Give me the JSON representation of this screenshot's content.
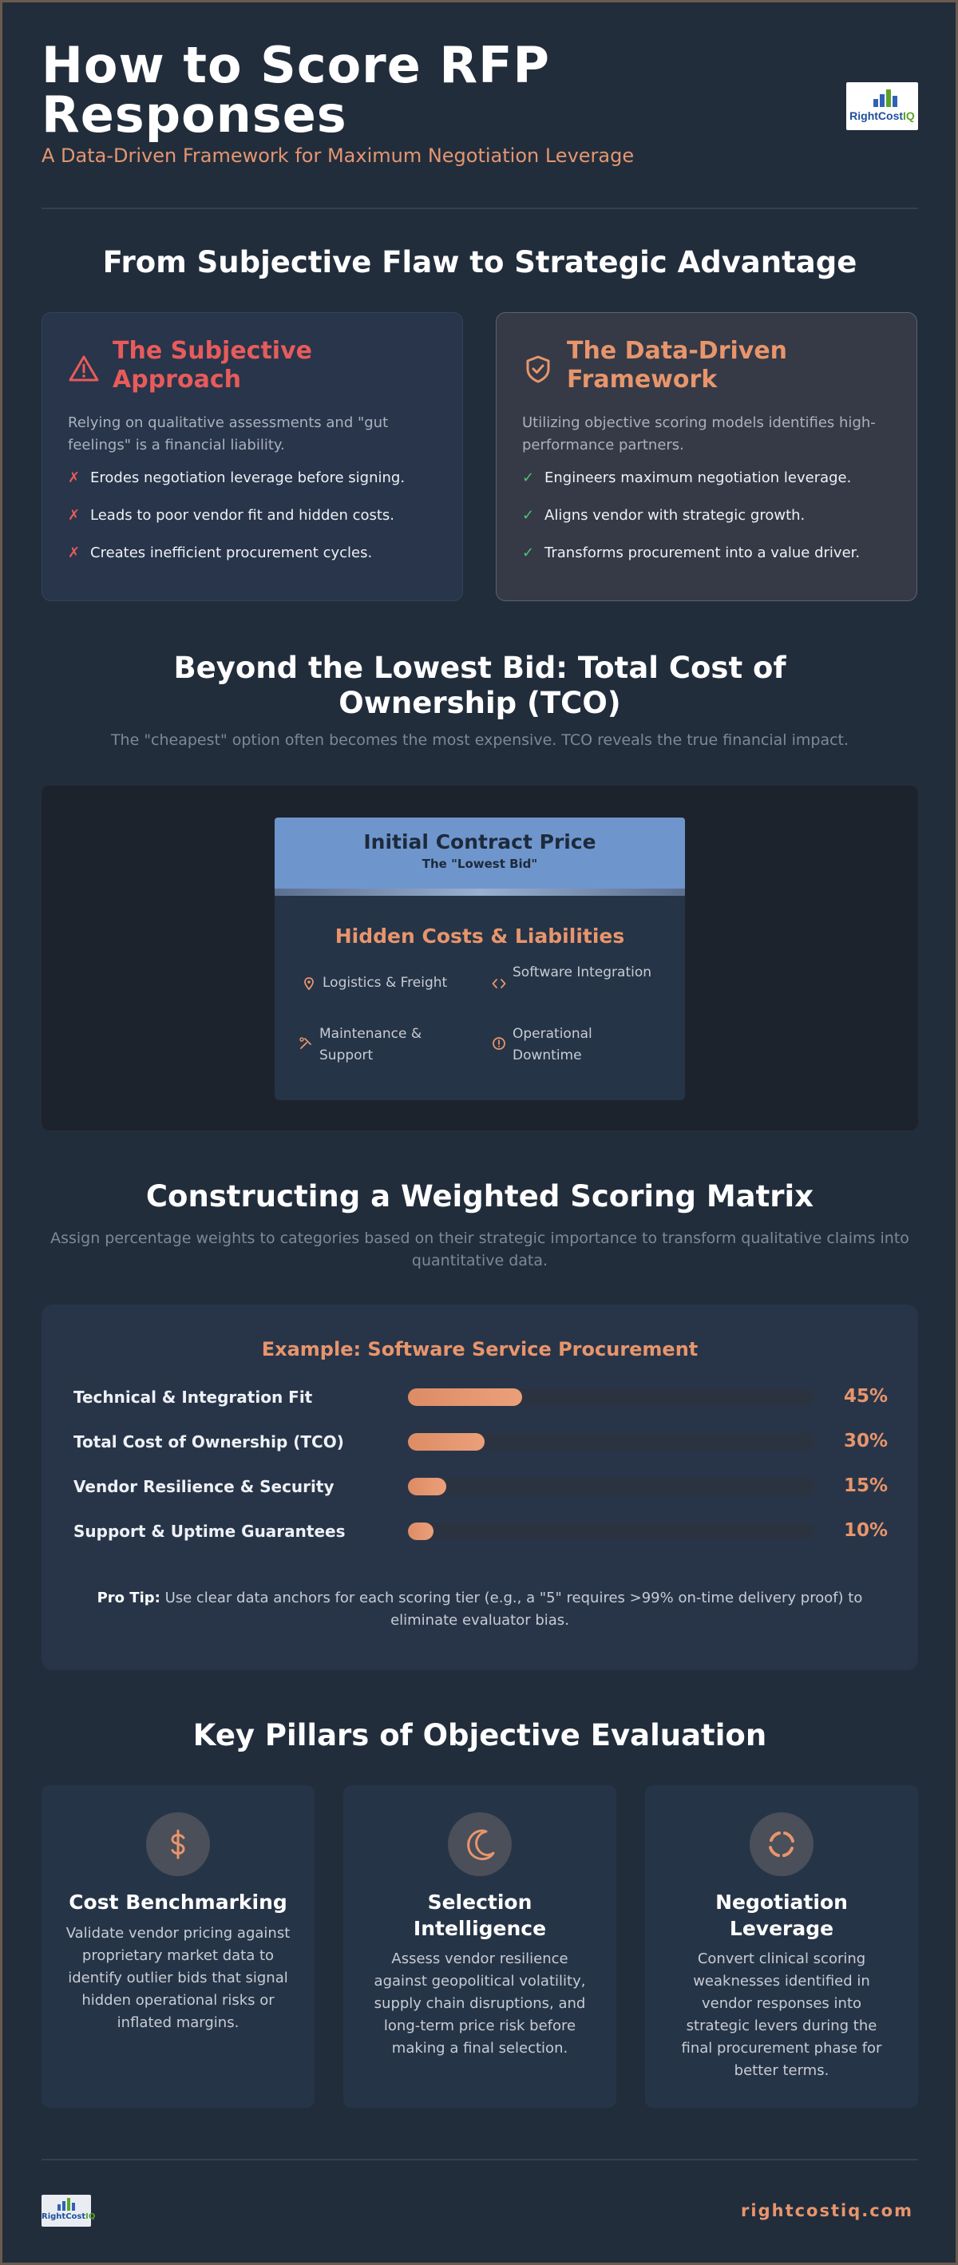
{
  "header": {
    "title": "How to Score RFP Responses",
    "subtitle": "A Data-Driven Framework for Maximum Negotiation Leverage",
    "logo_text_a": "Right",
    "logo_text_b": "Cost",
    "logo_text_c": "IQ"
  },
  "comparison": {
    "title": "From Subjective Flaw to Strategic Advantage",
    "subjective": {
      "title": "The Subjective Approach",
      "icon": "warning-triangle-icon",
      "description": "Relying on qualitative assessments and \"gut feelings\" is a financial liability.",
      "points": [
        "Erodes negotiation leverage before signing.",
        "Leads to poor vendor fit and hidden costs.",
        "Creates inefficient procurement cycles."
      ]
    },
    "data_driven": {
      "title": "The Data-Driven Framework",
      "icon": "shield-check-icon",
      "description": "Utilizing objective scoring models identifies high-performance partners.",
      "points": [
        "Engineers maximum negotiation leverage.",
        "Aligns vendor with strategic growth.",
        "Transforms procurement into a value driver."
      ]
    }
  },
  "tco": {
    "title": "Beyond the Lowest Bid: Total Cost of Ownership (TCO)",
    "subtitle": "The \"cheapest\" option often becomes the most expensive. TCO reveals the true financial impact.",
    "top_title": "Initial Contract Price",
    "top_sub": "The \"Lowest Bid\"",
    "hidden_title": "Hidden Costs & Liabilities",
    "items": [
      {
        "label": "Logistics & Freight",
        "icon": "location-pin-icon"
      },
      {
        "label": "Software Integration",
        "icon": "code-icon"
      },
      {
        "label": "Maintenance & Support",
        "icon": "tools-icon"
      },
      {
        "label": "Operational Downtime",
        "icon": "alert-circle-icon"
      }
    ]
  },
  "matrix": {
    "title": "Constructing a Weighted Scoring Matrix",
    "subtitle": "Assign percentage weights to categories based on their strategic importance to transform qualitative claims into quantitative data.",
    "example_title": "Example: Software Service Procurement",
    "rows": [
      {
        "label": "Technical & Integration Fit",
        "weight": 45,
        "weight_label": "45%"
      },
      {
        "label": "Total Cost of Ownership (TCO)",
        "weight": 30,
        "weight_label": "30%"
      },
      {
        "label": "Vendor Resilience & Security",
        "weight": 15,
        "weight_label": "15%"
      },
      {
        "label": "Support & Uptime Guarantees",
        "weight": 10,
        "weight_label": "10%"
      }
    ],
    "protip_label": "Pro Tip:",
    "protip_text": " Use clear data anchors for each scoring tier (e.g., a \"5\" requires >99% on-time delivery proof) to eliminate evaluator bias."
  },
  "pillars": {
    "title": "Key Pillars of Objective Evaluation",
    "items": [
      {
        "title": "Cost Benchmarking",
        "icon": "dollar-icon",
        "body": "Validate vendor pricing against proprietary market data to identify outlier bids that signal hidden operational risks or inflated margins."
      },
      {
        "title": "Selection Intelligence",
        "icon": "moon-icon",
        "body": "Assess vendor resilience against geopolitical volatility, supply chain disruptions, and long-term price risk before making a final selection."
      },
      {
        "title": "Negotiation Leverage",
        "icon": "refresh-icon",
        "body": "Convert clinical scoring weaknesses identified in vendor responses into strategic levers during the final procurement phase for better terms."
      }
    ]
  },
  "footer": {
    "url": "rightcostiq.com"
  },
  "colors": {
    "background": "#222d3c",
    "accent": "#e8956c",
    "danger": "#e85b5b",
    "success": "#4fc27a",
    "tco_top": "#6f96cc"
  }
}
